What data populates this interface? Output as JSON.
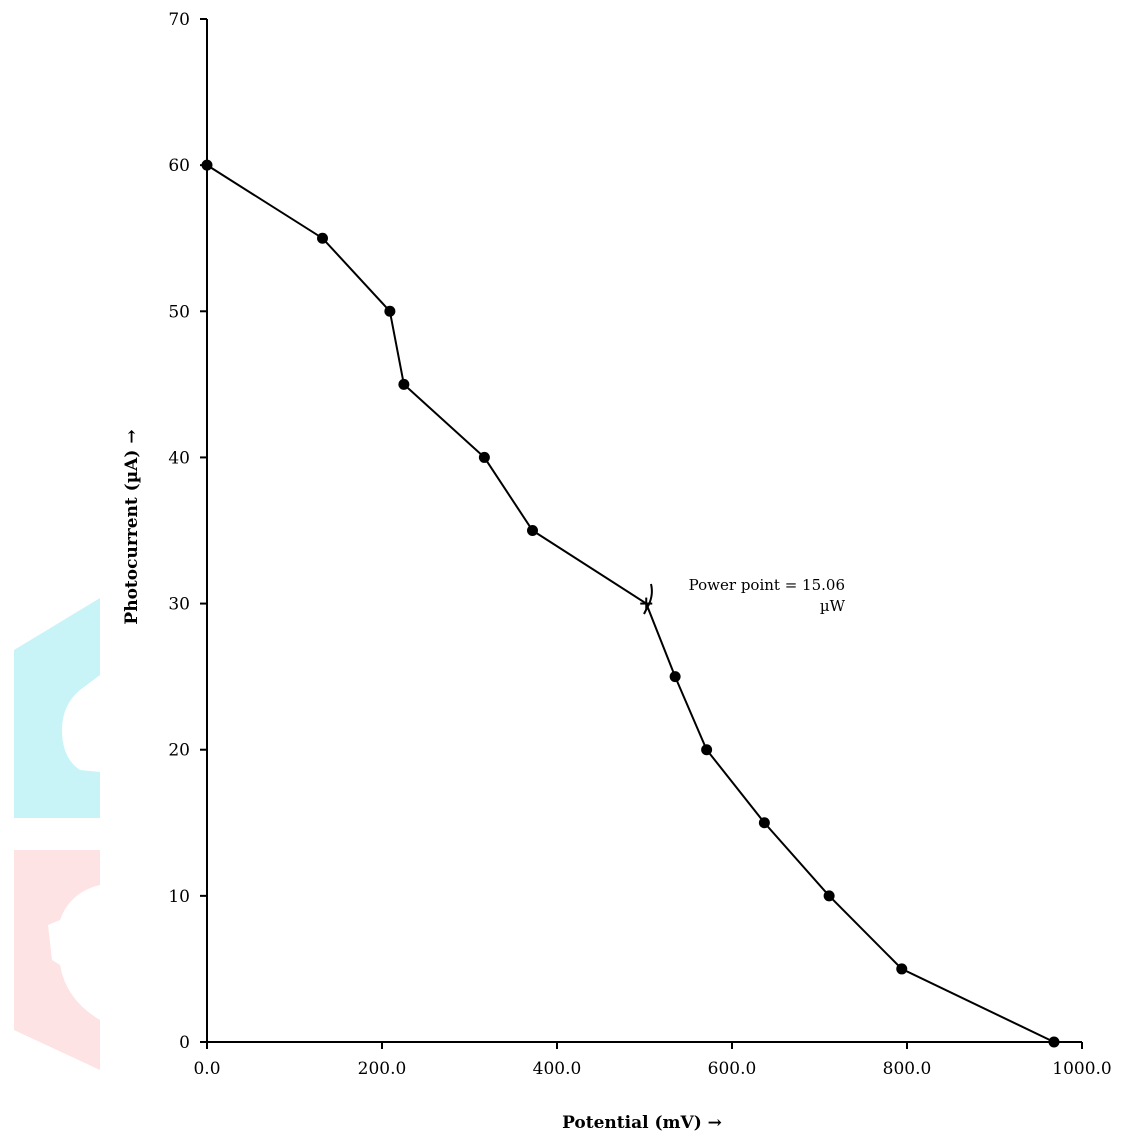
{
  "chart_data": {
    "type": "line",
    "title": "",
    "xlabel": "Potential (mV) →",
    "ylabel": "Photocurrent (µA) →",
    "xlim": [
      0,
      1000
    ],
    "ylim": [
      0,
      70
    ],
    "x_ticks": [
      "0.0",
      "200.0",
      "400.0",
      "600.0",
      "800.0",
      "1000.0"
    ],
    "y_ticks": [
      "0",
      "10",
      "20",
      "30",
      "40",
      "50",
      "60",
      "70"
    ],
    "grid": false,
    "legend": "none",
    "series": [
      {
        "x": [
          0,
          132,
          209,
          225,
          317,
          372,
          502,
          535,
          571,
          637,
          711,
          794,
          968
        ],
        "y": [
          60,
          55,
          50,
          45,
          40,
          35,
          30,
          25,
          20,
          15,
          10,
          5,
          0
        ],
        "markers": [
          "circle",
          "circle",
          "circle",
          "circle",
          "circle",
          "circle",
          "cross",
          "circle",
          "circle",
          "circle",
          "circle",
          "circle",
          "circle"
        ]
      }
    ],
    "annotations": [
      {
        "text_line1": "Power point = 15.06",
        "text_line2": "µW",
        "x": 502,
        "y": 30
      }
    ],
    "line_color": "#000000",
    "marker_color": "#000000"
  },
  "watermark": {
    "colors": {
      "cyan": "#c8f4f8",
      "pink": "#fde3e3"
    }
  }
}
